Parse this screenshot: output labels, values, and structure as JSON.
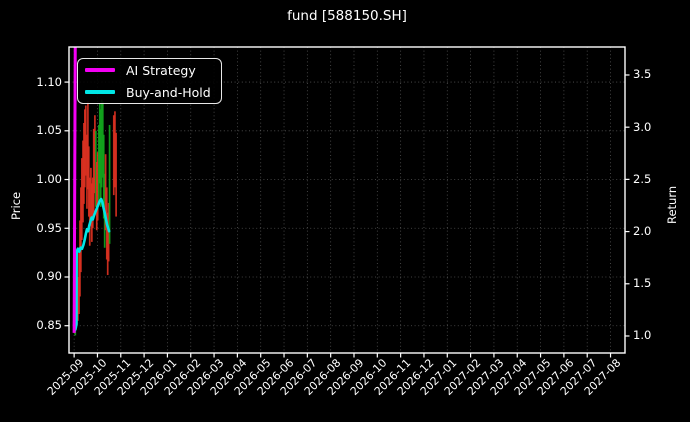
{
  "colors": {
    "background": "#000000",
    "foreground": "#ffffff",
    "grid": "#999999",
    "ai_strategy": "#f400f4",
    "buy_and_hold": "#00e6e6",
    "bar_red": "#df3222",
    "bar_green": "#13a81e"
  },
  "chart_data": {
    "type": "line",
    "title": "fund [588150.SH]",
    "xlabel": "",
    "grid": {
      "visible": true,
      "style": "dotted"
    },
    "x_axis": {
      "tick_labels": [
        "2025-09",
        "2025-10",
        "2025-11",
        "2025-12",
        "2026-01",
        "2026-02",
        "2026-03",
        "2026-04",
        "2026-05",
        "2026-06",
        "2026-07",
        "2026-08",
        "2026-09",
        "2026-10",
        "2026-11",
        "2026-12",
        "2027-01",
        "2027-02",
        "2027-03",
        "2027-04",
        "2027-05",
        "2027-06",
        "2027-07",
        "2027-08"
      ],
      "rotation": 45,
      "xlim_months": [
        -0.22,
        23.62
      ]
    },
    "left_axis": {
      "label": "Price",
      "tick_labels": [
        "1.10",
        "1.05",
        "1.00",
        "0.95",
        "0.90",
        "0.85"
      ],
      "ylim": [
        0.822,
        1.136
      ]
    },
    "right_axis": {
      "label": "Return",
      "tick_labels": [
        "3.5",
        "3.0",
        "2.5",
        "2.0",
        "1.5",
        "1.0"
      ],
      "ylim": [
        0.837,
        3.768
      ]
    },
    "legend": {
      "position": "upper-left",
      "entries": [
        {
          "label": "AI Strategy",
          "color": "#f400f4"
        },
        {
          "label": "Buy-and-Hold",
          "color": "#00e6e6"
        }
      ]
    },
    "series": [
      {
        "name": "AI Strategy",
        "axis": "right",
        "color": "#f400f4",
        "width": 3,
        "points": [
          [
            0.0,
            1.03
          ],
          [
            0.05,
            3.9
          ]
        ]
      },
      {
        "name": "Buy-and-Hold",
        "axis": "left",
        "color": "#00e6e6",
        "width": 2.6,
        "points": [
          [
            0.0,
            0.851
          ],
          [
            0.02,
            0.845
          ],
          [
            0.05,
            0.846
          ],
          [
            0.08,
            0.849
          ],
          [
            0.1,
            0.852
          ],
          [
            0.11,
            0.926
          ],
          [
            0.16,
            0.929
          ],
          [
            0.22,
            0.926
          ],
          [
            0.28,
            0.93
          ],
          [
            0.34,
            0.929
          ],
          [
            0.4,
            0.933
          ],
          [
            0.45,
            0.938
          ],
          [
            0.5,
            0.944
          ],
          [
            0.55,
            0.949
          ],
          [
            0.6,
            0.947
          ],
          [
            0.65,
            0.953
          ],
          [
            0.7,
            0.957
          ],
          [
            0.75,
            0.961
          ],
          [
            0.8,
            0.959
          ],
          [
            0.85,
            0.963
          ],
          [
            0.9,
            0.966
          ],
          [
            0.95,
            0.969
          ],
          [
            1.0,
            0.972
          ],
          [
            1.05,
            0.975
          ],
          [
            1.1,
            0.978
          ],
          [
            1.16,
            0.98
          ],
          [
            1.21,
            0.977
          ],
          [
            1.26,
            0.971
          ],
          [
            1.31,
            0.966
          ],
          [
            1.36,
            0.96
          ],
          [
            1.41,
            0.954
          ],
          [
            1.46,
            0.95
          ],
          [
            1.5,
            0.947
          ]
        ]
      }
    ],
    "fund_price_bars": {
      "axis": "left",
      "bars": [
        [
          0.03,
          0.842,
          0.862,
          "red"
        ],
        [
          0.05,
          0.84,
          0.858,
          "green"
        ],
        [
          0.08,
          0.846,
          0.868,
          "red"
        ],
        [
          0.12,
          0.85,
          0.882,
          "red"
        ],
        [
          0.16,
          0.855,
          0.9,
          "red"
        ],
        [
          0.21,
          0.862,
          0.93,
          "red"
        ],
        [
          0.25,
          0.88,
          0.958,
          "red"
        ],
        [
          0.29,
          0.905,
          0.992,
          "red"
        ],
        [
          0.33,
          0.938,
          1.022,
          "red"
        ],
        [
          0.38,
          0.956,
          1.04,
          "red"
        ],
        [
          0.42,
          0.975,
          1.058,
          "red"
        ],
        [
          0.46,
          0.992,
          1.072,
          "red"
        ],
        [
          0.5,
          1.004,
          1.076,
          "red"
        ],
        [
          0.55,
          0.97,
          1.046,
          "red"
        ],
        [
          0.59,
          0.99,
          1.08,
          "red"
        ],
        [
          0.63,
          0.962,
          1.034,
          "red"
        ],
        [
          0.67,
          0.932,
          1.002,
          "red"
        ],
        [
          0.72,
          0.952,
          1.012,
          "red"
        ],
        [
          0.76,
          0.936,
          0.996,
          "red"
        ],
        [
          0.8,
          0.95,
          1.002,
          "red"
        ],
        [
          0.84,
          0.966,
          1.052,
          "red"
        ],
        [
          0.89,
          0.986,
          1.066,
          "red"
        ],
        [
          0.93,
          0.972,
          1.05,
          "green"
        ],
        [
          0.97,
          0.948,
          1.018,
          "red"
        ],
        [
          1.01,
          0.958,
          1.028,
          "red"
        ],
        [
          1.06,
          0.976,
          1.056,
          "green"
        ],
        [
          1.1,
          0.996,
          1.078,
          "green"
        ],
        [
          1.14,
          0.972,
          1.072,
          "green"
        ],
        [
          1.18,
          0.992,
          1.082,
          "green"
        ],
        [
          1.23,
          1.002,
          1.08,
          "green"
        ],
        [
          1.27,
          0.96,
          1.046,
          "green"
        ],
        [
          1.31,
          0.93,
          1.006,
          "green"
        ],
        [
          1.35,
          0.948,
          1.026,
          "red"
        ],
        [
          1.4,
          0.918,
          0.992,
          "red"
        ],
        [
          1.44,
          0.902,
          0.966,
          "red"
        ],
        [
          1.48,
          0.916,
          0.976,
          "red"
        ],
        [
          1.52,
          0.934,
          1.056,
          "green"
        ],
        [
          1.7,
          0.984,
          1.066,
          "red"
        ],
        [
          1.75,
          0.992,
          1.07,
          "red"
        ],
        [
          1.8,
          0.962,
          1.048,
          "red"
        ]
      ]
    }
  }
}
